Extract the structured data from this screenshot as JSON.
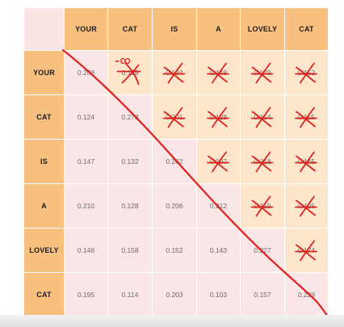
{
  "headers": [
    "YOUR",
    "CAT",
    "IS",
    "A",
    "LOVELY",
    "CAT"
  ],
  "matrix": [
    [
      "0.268",
      "0.119",
      "0.134",
      "0.148",
      "0.179",
      "0.152"
    ],
    [
      "0.124",
      "0.278",
      "0.201",
      "0.128",
      "0.154",
      "0.115"
    ],
    [
      "0.147",
      "0.132",
      "0.262",
      "0.097",
      "0.218",
      "0.145"
    ],
    [
      "0.210",
      "0.128",
      "0.206",
      "0.212",
      "0.119",
      "0.125"
    ],
    [
      "0.146",
      "0.158",
      "0.152",
      "0.143",
      "0.227",
      "0.174"
    ],
    [
      "0.195",
      "0.114",
      "0.203",
      "0.103",
      "0.157",
      "0.229"
    ]
  ],
  "annotation": {
    "label": "-∞",
    "ink_color": "#e0201b"
  },
  "colors": {
    "header": "#f8c07f",
    "lower_cell": "#fbe6e7",
    "upper_cell": "#fde6cc",
    "corner": "#fbe5e4"
  }
}
